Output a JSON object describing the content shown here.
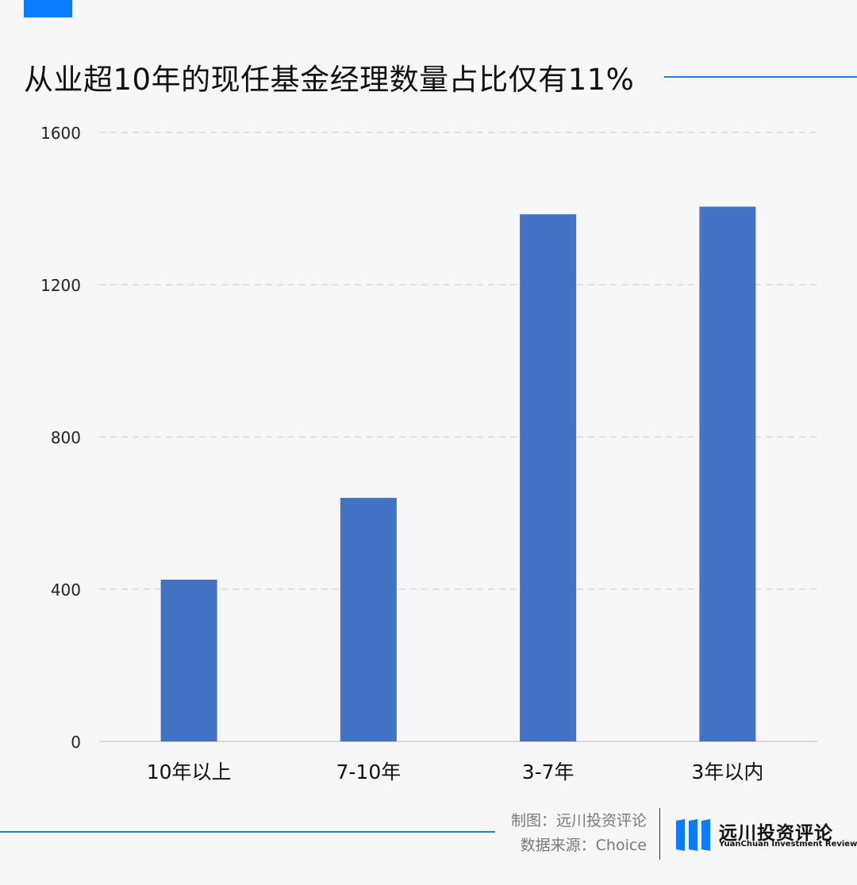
{
  "title": "从业超10年的现任基金经理数量占比仅有11%",
  "credits": {
    "maker": "制图：远川投资评论",
    "source": "数据来源：Choice"
  },
  "logo": {
    "name": "远川投资评论",
    "subtitle": "YuanChuan Investment Review",
    "mark": "three-blue-bars-logo"
  },
  "colors": {
    "accent": "#0a7cff",
    "bar": "#4472c4",
    "grid": "#d9d9d9"
  },
  "chart_data": {
    "type": "bar",
    "categories": [
      "10年以上",
      "7-10年",
      "3-7年",
      "3年以内"
    ],
    "values": [
      425,
      640,
      1385,
      1405
    ],
    "ylim": [
      0,
      1600
    ],
    "yticks": [
      0,
      400,
      800,
      1200,
      1600
    ],
    "grid": true,
    "xlabel": "",
    "ylabel": ""
  }
}
